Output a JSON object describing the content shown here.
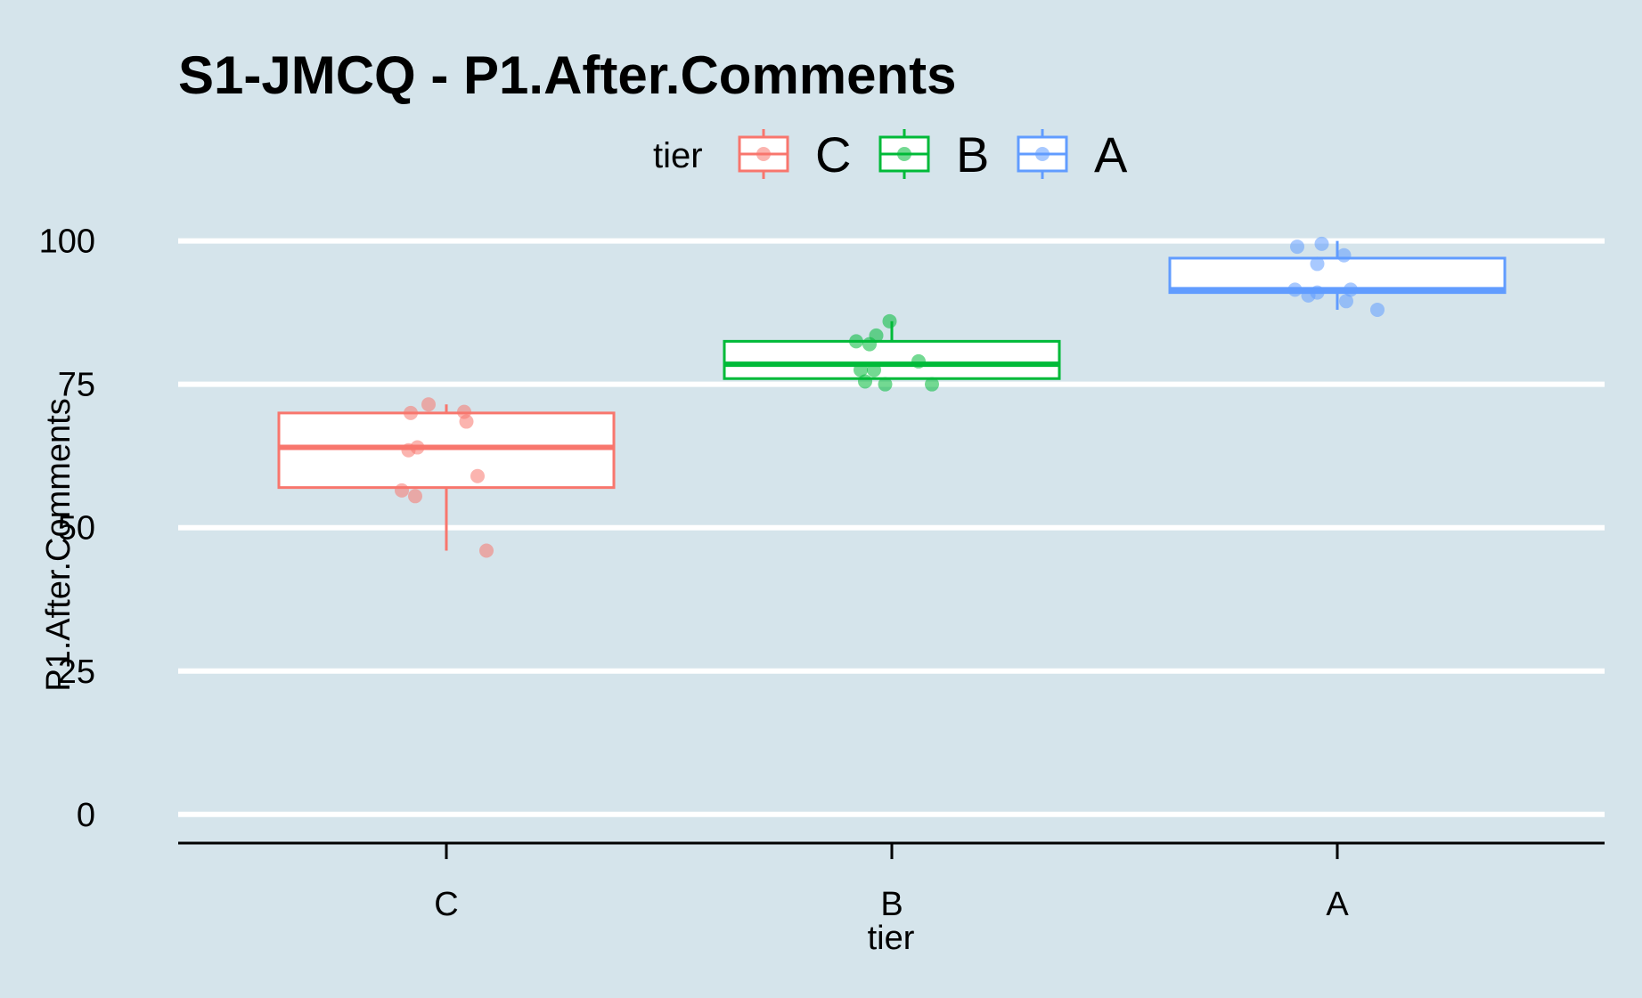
{
  "chart_data": {
    "type": "box",
    "title": "S1-JMCQ - P1.After.Comments",
    "xlabel": "tier",
    "ylabel": "P1.After.Comments",
    "ylim": [
      -5,
      106
    ],
    "yticks": [
      0,
      25,
      50,
      75,
      100
    ],
    "grid": "horizontal major lines (white)",
    "legend": {
      "title": "tier",
      "position": "top",
      "entries": [
        "C",
        "B",
        "A"
      ]
    },
    "categories": [
      "C",
      "B",
      "A"
    ],
    "colors": {
      "C": "#f8766d",
      "B": "#00ba38",
      "A": "#619cff"
    },
    "series": [
      {
        "name": "C",
        "box": {
          "whisker_low": 46,
          "q1": 57,
          "median": 64,
          "q3": 70,
          "whisker_high": 71.5
        },
        "points": [
          {
            "x": -0.08,
            "y": 70
          },
          {
            "x": -0.04,
            "y": 71.5
          },
          {
            "x": 0.04,
            "y": 70.2
          },
          {
            "x": 0.045,
            "y": 68.5
          },
          {
            "x": -0.085,
            "y": 63.5
          },
          {
            "x": -0.065,
            "y": 64
          },
          {
            "x": 0.07,
            "y": 59
          },
          {
            "x": -0.1,
            "y": 56.5
          },
          {
            "x": -0.07,
            "y": 55.5
          },
          {
            "x": 0.09,
            "y": 46
          }
        ]
      },
      {
        "name": "B",
        "box": {
          "whisker_low": 76,
          "q1": 76,
          "median": 78.5,
          "q3": 82.5,
          "whisker_high": 86
        },
        "points": [
          {
            "x": -0.08,
            "y": 82.5
          },
          {
            "x": -0.05,
            "y": 82
          },
          {
            "x": -0.035,
            "y": 83.5
          },
          {
            "x": -0.005,
            "y": 86
          },
          {
            "x": -0.07,
            "y": 77.5
          },
          {
            "x": -0.04,
            "y": 77.5
          },
          {
            "x": 0.06,
            "y": 79
          },
          {
            "x": -0.06,
            "y": 75.5
          },
          {
            "x": -0.015,
            "y": 75
          },
          {
            "x": 0.09,
            "y": 75
          }
        ]
      },
      {
        "name": "A",
        "box": {
          "whisker_low": 88,
          "q1": 91,
          "median": 91.5,
          "q3": 97,
          "whisker_high": 100
        },
        "points": [
          {
            "x": -0.09,
            "y": 99
          },
          {
            "x": -0.035,
            "y": 99.5
          },
          {
            "x": 0.015,
            "y": 97.5
          },
          {
            "x": -0.045,
            "y": 96
          },
          {
            "x": -0.095,
            "y": 91.5
          },
          {
            "x": -0.045,
            "y": 91
          },
          {
            "x": 0.03,
            "y": 91.5
          },
          {
            "x": -0.065,
            "y": 90.5
          },
          {
            "x": 0.02,
            "y": 89.5
          },
          {
            "x": 0.09,
            "y": 88
          }
        ]
      }
    ]
  }
}
